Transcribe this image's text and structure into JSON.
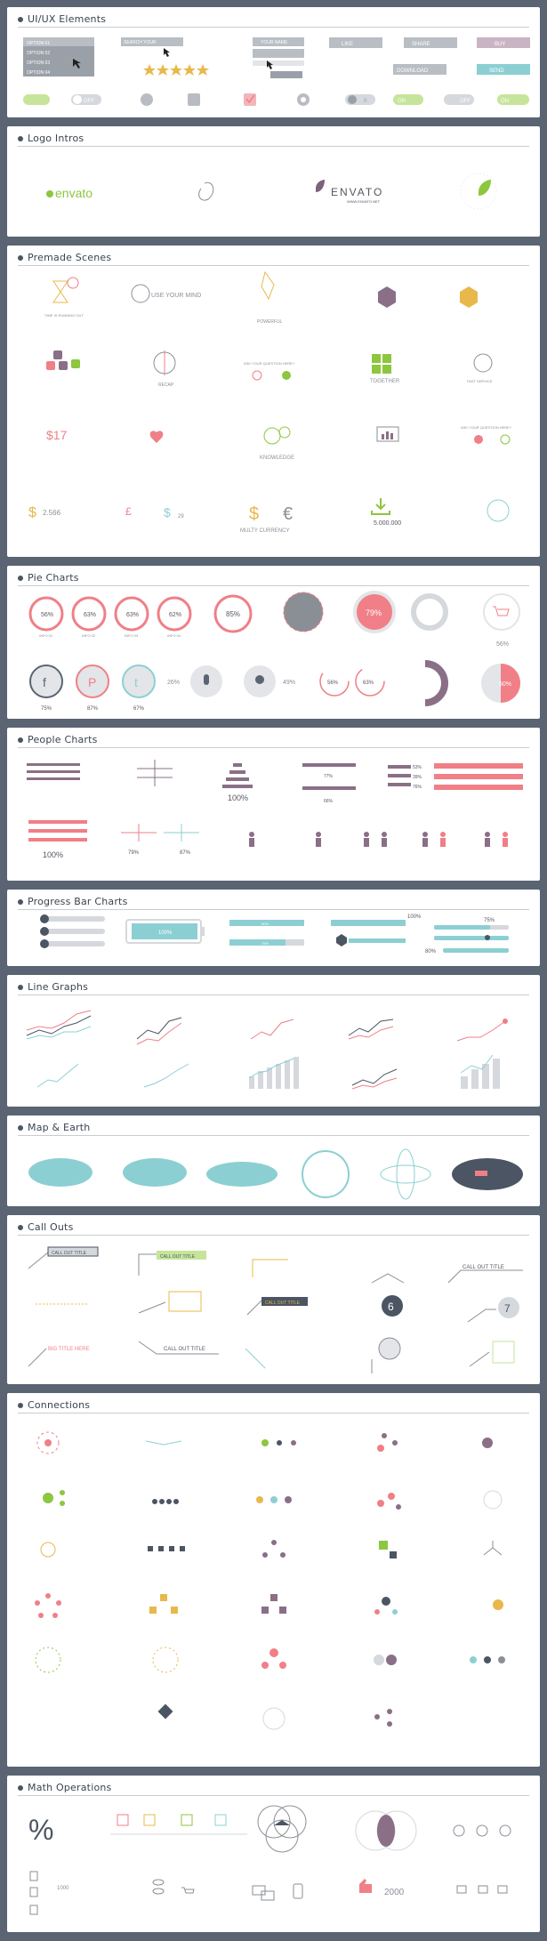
{
  "sections": [
    {
      "id": "uiux",
      "title": "UI/UX Elements"
    },
    {
      "id": "logo",
      "title": "Logo Intros"
    },
    {
      "id": "scenes",
      "title": "Premade Scenes"
    },
    {
      "id": "pie",
      "title": "Pie Charts"
    },
    {
      "id": "people",
      "title": "People Charts"
    },
    {
      "id": "progress",
      "title": "Progress Bar Charts"
    },
    {
      "id": "line",
      "title": "Line Graphs"
    },
    {
      "id": "map",
      "title": "Map & Earth"
    },
    {
      "id": "callouts",
      "title": "Call Outs"
    },
    {
      "id": "connections",
      "title": "Connections"
    },
    {
      "id": "math",
      "title": "Math Operations"
    }
  ],
  "uiux": {
    "dropdown_options": [
      "OPTION 01",
      "OPTION 02",
      "OPTION 03",
      "OPTION 04"
    ],
    "search_placeholder": "SEARCH YOUR",
    "name_placeholder": "YOUR NAME",
    "buttons": {
      "like": "LIKE",
      "share": "SHARE",
      "buy": "BUY",
      "download": "DOWNLOAD",
      "send": "SEND"
    },
    "toggles": {
      "on": "ON",
      "off": "OFF"
    },
    "rating_stars": 5,
    "counter": "0"
  },
  "logos": {
    "envato_text": "envato",
    "envato_caps": "ENVATO",
    "envato_small": "WWW.ENVATO.NET"
  },
  "scenes": {
    "time": "TIME IS RUNNING OUT",
    "mind": "USE YOUR MIND",
    "powerful": "POWERFUL",
    "social": "SOCIAL MEDIA",
    "recap": "RECAP",
    "question": "ASK YOUR QUESTION HERE?",
    "together": "TOGETHER",
    "fast": "FAST SERVICE",
    "price": "$17",
    "knowledge": "KNOWLEDGE",
    "question2": "ASK YOUR QUESTION HERE?",
    "amount1": "2.566",
    "amount2": "29",
    "multicurrency": "MULTY CURRENCY",
    "downloads": "5.000.000"
  },
  "pie": {
    "row1": [
      {
        "v": "56%",
        "l": "INFO 01"
      },
      {
        "v": "63%",
        "l": "INFO 02"
      },
      {
        "v": "63%",
        "l": "INFO 03"
      },
      {
        "v": "62%",
        "l": "INFO 04"
      }
    ],
    "big": "85%",
    "solid": "79%",
    "cart": "56%",
    "social": [
      "75%",
      "87%",
      "67%"
    ],
    "mic": "26%",
    "bulb": "49%",
    "pair": [
      "56%",
      "63%"
    ],
    "half": "50%"
  },
  "people": {
    "pct1": "100%",
    "pct2": "77%",
    "pct3": "66%",
    "stats": [
      "53%",
      "39%",
      "76%"
    ],
    "pct4": "100%",
    "pct5": "79%",
    "pct6": "87%"
  },
  "progress": {
    "battery": "100%",
    "bar1": "90%",
    "bar2": "75%",
    "bar3": "100%",
    "bar4": "75%",
    "bar5": "80%",
    "bar6": "40%"
  },
  "callouts": {
    "t1": "CALL OUT TITLE",
    "t2": "CALL OUT TITLE",
    "t3": "CALL OUT TITLE",
    "t4": "CALL OUT TITLE",
    "big": "BIG TITLE HERE",
    "t5": "CALL OUT TITLE",
    "t6": "CALL OUT TITLE",
    "n6": "6",
    "n7": "7"
  },
  "math": {
    "percent": "%",
    "num": "2000",
    "small": "1000"
  },
  "colors": {
    "bg": "#5a6472",
    "coral": "#f07f87",
    "teal": "#8ccfd3",
    "green": "#8dc63f",
    "purple": "#8a6f86",
    "gray": "#b9bcc2",
    "dark": "#4b5563",
    "gold": "#e8b84b"
  }
}
